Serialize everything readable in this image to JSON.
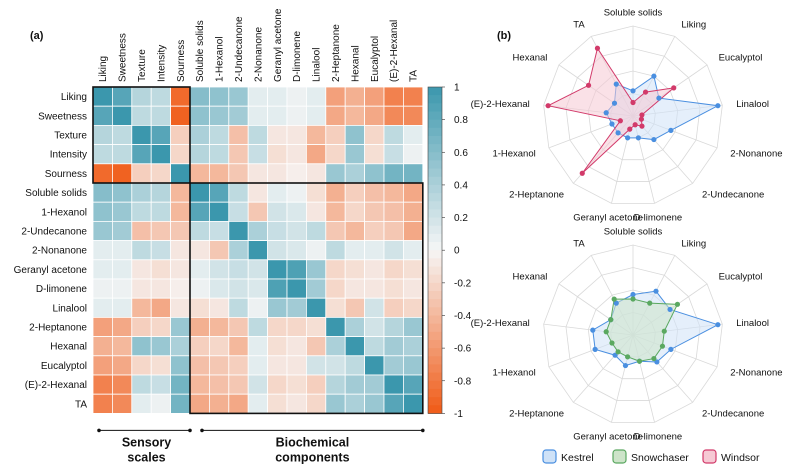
{
  "panel_labels": {
    "a": "(a)",
    "b": "(b)"
  },
  "heatmap_groups": {
    "sensory": [
      "Sensory",
      "scales"
    ],
    "biochemical": [
      "Biochemical",
      "components"
    ]
  },
  "chart_data": [
    {
      "type": "heatmap",
      "title": "(a)",
      "columns": [
        "Liking",
        "Sweetness",
        "Texture",
        "Intensity",
        "Sourness",
        "Soluble solids",
        "1-Hexanol",
        "2-Undecanone",
        "2-Nonanone",
        "Geranyl acetone",
        "D-limonene",
        "Linalool",
        "2-Heptanone",
        "Hexanal",
        "Eucalyptol",
        "(E)-2-Hexanal",
        "TA"
      ],
      "rows": [
        "Liking",
        "Sweetness",
        "Texture",
        "Intensity",
        "Sourness",
        "Soluble solids",
        "1-Hexanol",
        "2-Undecanone",
        "2-Nonanone",
        "Geranyl acetone",
        "D-limonene",
        "Linalool",
        "2-Heptanone",
        "Hexanal",
        "Eucalyptol",
        "(E)-2-Hexanal",
        "TA"
      ],
      "values": [
        [
          1.0,
          0.85,
          0.35,
          0.3,
          -0.9,
          0.6,
          0.55,
          0.5,
          0.1,
          0.1,
          0.05,
          0.1,
          -0.55,
          -0.45,
          -0.55,
          -0.75,
          -0.75
        ],
        [
          0.85,
          1.0,
          0.3,
          0.3,
          -0.95,
          0.55,
          0.5,
          0.45,
          0.1,
          0.1,
          0.05,
          0.1,
          -0.5,
          -0.4,
          -0.5,
          -0.7,
          -0.7
        ],
        [
          0.35,
          0.3,
          1.0,
          0.85,
          -0.25,
          0.4,
          0.3,
          -0.35,
          0.3,
          -0.1,
          -0.1,
          -0.4,
          -0.25,
          0.55,
          -0.2,
          0.3,
          0.1
        ],
        [
          0.3,
          0.3,
          0.85,
          1.0,
          -0.2,
          0.35,
          0.3,
          -0.3,
          0.25,
          -0.15,
          -0.1,
          -0.5,
          -0.2,
          0.5,
          -0.15,
          0.25,
          0.05
        ],
        [
          -0.9,
          -0.95,
          -0.25,
          -0.2,
          1.0,
          -0.4,
          -0.4,
          -0.3,
          -0.1,
          -0.1,
          -0.05,
          -0.1,
          0.5,
          0.4,
          0.55,
          0.7,
          0.7
        ],
        [
          0.6,
          0.55,
          0.4,
          0.35,
          -0.4,
          1.0,
          0.85,
          0.3,
          -0.1,
          0.1,
          0.05,
          -0.15,
          -0.45,
          -0.25,
          -0.35,
          -0.4,
          -0.5
        ],
        [
          0.55,
          0.5,
          0.3,
          0.3,
          -0.4,
          0.85,
          1.0,
          0.25,
          -0.3,
          0.2,
          0.15,
          -0.1,
          -0.4,
          -0.2,
          -0.3,
          -0.35,
          -0.45
        ],
        [
          0.5,
          0.45,
          -0.35,
          -0.3,
          -0.3,
          0.3,
          0.25,
          1.0,
          0.4,
          0.25,
          0.2,
          0.3,
          -0.3,
          -0.4,
          -0.25,
          -0.3,
          -0.5
        ],
        [
          0.1,
          0.1,
          0.3,
          0.25,
          -0.1,
          -0.1,
          -0.3,
          0.4,
          1.0,
          0.2,
          0.15,
          0.05,
          0.3,
          0.1,
          0.1,
          0.2,
          0.1
        ],
        [
          0.1,
          0.1,
          -0.1,
          -0.15,
          -0.1,
          0.1,
          0.2,
          0.25,
          0.2,
          1.0,
          0.9,
          0.5,
          -0.2,
          -0.15,
          -0.1,
          -0.2,
          -0.15
        ],
        [
          0.05,
          0.05,
          -0.1,
          -0.1,
          -0.05,
          0.05,
          0.15,
          0.2,
          0.15,
          0.9,
          1.0,
          0.45,
          -0.2,
          -0.1,
          -0.1,
          -0.15,
          -0.1
        ],
        [
          0.1,
          0.1,
          -0.4,
          -0.5,
          -0.1,
          -0.15,
          -0.1,
          0.3,
          0.05,
          0.5,
          0.45,
          1.0,
          -0.15,
          -0.3,
          0.2,
          -0.25,
          -0.2
        ],
        [
          -0.55,
          -0.5,
          -0.25,
          -0.2,
          0.5,
          -0.45,
          -0.4,
          -0.3,
          0.3,
          -0.2,
          -0.2,
          -0.15,
          1.0,
          0.4,
          0.2,
          0.35,
          0.5
        ],
        [
          -0.45,
          -0.4,
          0.55,
          0.5,
          0.4,
          -0.25,
          -0.2,
          -0.4,
          0.1,
          -0.15,
          -0.1,
          -0.3,
          0.4,
          1.0,
          0.3,
          0.45,
          0.4
        ],
        [
          -0.55,
          -0.5,
          -0.2,
          -0.15,
          0.55,
          -0.35,
          -0.3,
          -0.25,
          0.1,
          -0.1,
          -0.1,
          0.2,
          0.2,
          0.3,
          1.0,
          0.45,
          0.5
        ],
        [
          -0.75,
          -0.7,
          0.3,
          0.25,
          0.7,
          -0.4,
          -0.35,
          -0.3,
          0.2,
          -0.2,
          -0.15,
          -0.25,
          0.35,
          0.45,
          0.45,
          1.0,
          0.85
        ],
        [
          -0.75,
          -0.7,
          0.1,
          0.05,
          0.7,
          -0.5,
          -0.45,
          -0.5,
          0.1,
          -0.15,
          -0.1,
          -0.2,
          0.5,
          0.4,
          0.5,
          0.85,
          1.0
        ]
      ],
      "colorbar_ticks": [
        "1",
        "0.8",
        "0.6",
        "0.4",
        "0.2",
        "0",
        "-0.2",
        "-0.4",
        "-0.6",
        "-0.8",
        "-1"
      ],
      "vmin": -1,
      "vmax": 1,
      "colors": {
        "positive": "#3b97ad",
        "negative": "#f05a16",
        "zero": "#f6f6f6"
      }
    },
    {
      "type": "radar",
      "title": "(b) top",
      "axes": [
        "Soluble solids",
        "Liking",
        "Eucalyptol",
        "Linalool",
        "2-Nonanone",
        "2-Undecanone",
        "D-limonene",
        "Geranyl acetone",
        "2-Heptanone",
        "1-Hexanol",
        "(E)-2-Hexanal",
        "Hexanal",
        "TA"
      ],
      "rlim": [
        0,
        100
      ],
      "series": [
        {
          "name": "Kestrel",
          "values": [
            28,
            50,
            35,
            95,
            45,
            35,
            25,
            25,
            25,
            25,
            30,
            25,
            40
          ]
        },
        {
          "name": "Windsor",
          "values": [
            15,
            30,
            55,
            10,
            10,
            15,
            10,
            15,
            85,
            15,
            95,
            60,
            85
          ]
        }
      ]
    },
    {
      "type": "radar",
      "title": "(b) bottom",
      "axes": [
        "Soluble solids",
        "Liking",
        "Eucalyptol",
        "Linalool",
        "2-Nonanone",
        "2-Undecanone",
        "D-limonene",
        "Geranyl acetone",
        "2-Heptanone",
        "1-Hexanol",
        "(E)-2-Hexanal",
        "Hexanal",
        "TA"
      ],
      "rlim": [
        0,
        100
      ],
      "series": [
        {
          "name": "Kestrel",
          "values": [
            45,
            55,
            50,
            95,
            45,
            40,
            30,
            35,
            30,
            45,
            45,
            30,
            40
          ]
        },
        {
          "name": "Snowchaser",
          "values": [
            40,
            40,
            60,
            35,
            35,
            35,
            30,
            25,
            25,
            25,
            30,
            30,
            45
          ]
        }
      ]
    }
  ],
  "legend": [
    {
      "name": "Kestrel",
      "color": "#4a8fe0",
      "fill": "#cfe2f7"
    },
    {
      "name": "Snowchaser",
      "color": "#5aa860",
      "fill": "#cde4c9"
    },
    {
      "name": "Windsor",
      "color": "#d23a6a",
      "fill": "#f6c9d4"
    }
  ]
}
